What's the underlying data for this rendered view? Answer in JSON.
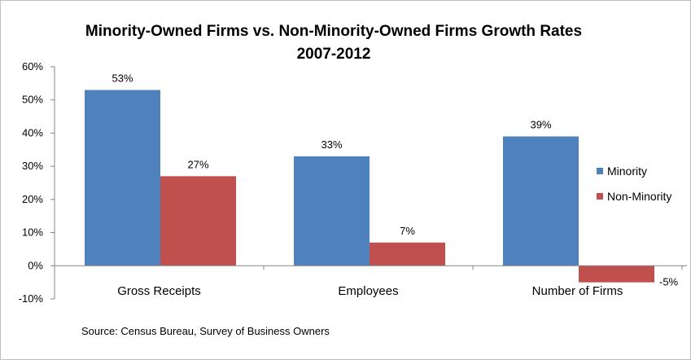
{
  "chart_data": {
    "type": "bar",
    "title": "Minority-Owned Firms vs. Non-Minority-Owned Firms Growth Rates",
    "subtitle": "2007-2012",
    "categories": [
      "Gross Receipts",
      "Employees",
      "Number of Firms"
    ],
    "series": [
      {
        "name": "Minority",
        "values": [
          53,
          33,
          39
        ],
        "labels": [
          "53%",
          "33%",
          "39%"
        ],
        "color": "#4f81bd"
      },
      {
        "name": "Non-Minority",
        "values": [
          27,
          7,
          -5
        ],
        "labels": [
          "27%",
          "7%",
          "-5%"
        ],
        "color": "#c0504d"
      }
    ],
    "ylim": [
      -10,
      60
    ],
    "yticks": [
      60,
      50,
      40,
      30,
      20,
      10,
      0,
      -10
    ],
    "ytick_labels": [
      "60%",
      "50%",
      "40%",
      "30%",
      "20%",
      "10%",
      "0%",
      "-10%"
    ],
    "xlabel": "",
    "ylabel": "",
    "grid": false,
    "legend_position": "right",
    "source": "Source: Census Bureau, Survey of Business Owners"
  }
}
